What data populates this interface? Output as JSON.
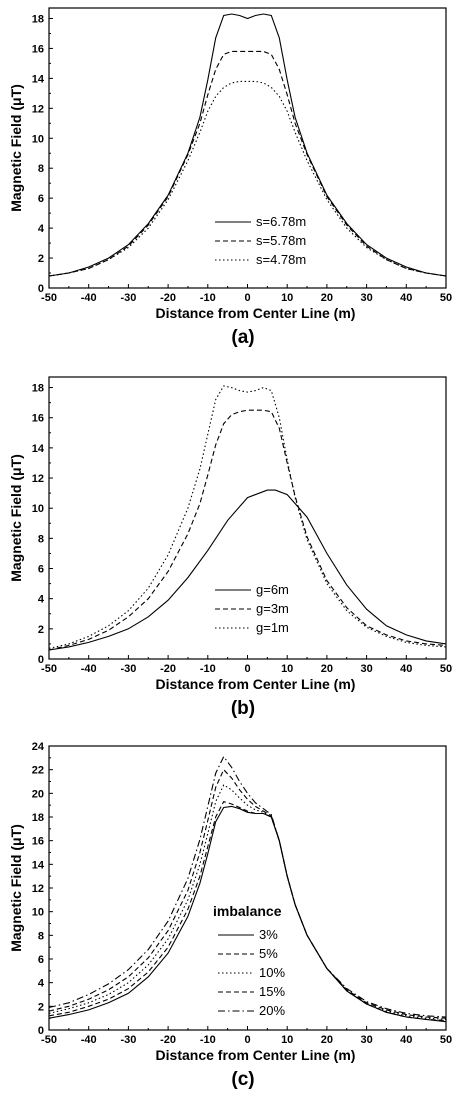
{
  "chart_data": [
    {
      "type": "line",
      "caption": "(a)",
      "xlabel": "Distance from Center Line (m)",
      "ylabel": "Magnetic Field (μT)",
      "xlim": [
        -50,
        50
      ],
      "ylim": [
        0,
        18.7
      ],
      "xticks": [
        -50,
        -40,
        -30,
        -20,
        -10,
        0,
        10,
        20,
        30,
        40,
        50
      ],
      "yticks": [
        0,
        2,
        4,
        6,
        8,
        10,
        12,
        14,
        16,
        18
      ],
      "legend": {
        "position": "lower-center"
      },
      "series": [
        {
          "name": "s=6.78m",
          "dash": "solid",
          "x": [
            -50,
            -45,
            -40,
            -35,
            -30,
            -25,
            -20,
            -15,
            -12,
            -10,
            -8,
            -6,
            -4,
            -2,
            0,
            2,
            4,
            6,
            8,
            10,
            12,
            15,
            20,
            25,
            30,
            35,
            40,
            45,
            50
          ],
          "y": [
            0.8,
            1.0,
            1.4,
            2.0,
            2.9,
            4.3,
            6.2,
            9.0,
            11.4,
            13.9,
            16.7,
            18.2,
            18.3,
            18.2,
            18.0,
            18.2,
            18.3,
            18.2,
            16.7,
            13.9,
            11.4,
            9.0,
            6.2,
            4.3,
            2.9,
            2.0,
            1.4,
            1.0,
            0.8
          ]
        },
        {
          "name": "s=5.78m",
          "dash": "dashed",
          "x": [
            -50,
            -45,
            -40,
            -35,
            -30,
            -25,
            -20,
            -15,
            -12,
            -10,
            -8,
            -6,
            -4,
            -2,
            0,
            2,
            4,
            6,
            8,
            10,
            12,
            15,
            20,
            25,
            30,
            35,
            40,
            45,
            50
          ],
          "y": [
            0.8,
            1.0,
            1.3,
            1.9,
            2.8,
            4.2,
            6.1,
            8.9,
            11.0,
            12.9,
            14.6,
            15.6,
            15.8,
            15.8,
            15.8,
            15.8,
            15.8,
            15.6,
            14.6,
            12.9,
            11.0,
            8.9,
            6.1,
            4.2,
            2.8,
            1.9,
            1.3,
            1.0,
            0.8
          ]
        },
        {
          "name": "s=4.78m",
          "dash": "dotted",
          "x": [
            -50,
            -45,
            -40,
            -35,
            -30,
            -25,
            -20,
            -15,
            -12,
            -10,
            -8,
            -6,
            -4,
            -2,
            0,
            2,
            4,
            6,
            8,
            10,
            12,
            15,
            20,
            25,
            30,
            35,
            40,
            45,
            50
          ],
          "y": [
            0.8,
            1.0,
            1.3,
            1.9,
            2.7,
            4.0,
            5.9,
            8.5,
            10.4,
            11.8,
            12.8,
            13.4,
            13.7,
            13.8,
            13.8,
            13.8,
            13.7,
            13.4,
            12.8,
            11.8,
            10.4,
            8.5,
            5.9,
            4.0,
            2.7,
            1.9,
            1.3,
            1.0,
            0.8
          ]
        }
      ]
    },
    {
      "type": "line",
      "caption": "(b)",
      "xlabel": "Distance from Center Line (m)",
      "ylabel": "Magnetic Field (μT)",
      "xlim": [
        -50,
        50
      ],
      "ylim": [
        0,
        18.7
      ],
      "xticks": [
        -50,
        -40,
        -30,
        -20,
        -10,
        0,
        10,
        20,
        30,
        40,
        50
      ],
      "yticks": [
        0,
        2,
        4,
        6,
        8,
        10,
        12,
        14,
        16,
        18
      ],
      "legend": {
        "position": "lower-center"
      },
      "series": [
        {
          "name": "g=6m",
          "dash": "solid",
          "x": [
            -50,
            -45,
            -40,
            -35,
            -30,
            -25,
            -20,
            -15,
            -10,
            -5,
            0,
            5,
            7,
            10,
            15,
            20,
            25,
            30,
            35,
            40,
            45,
            50
          ],
          "y": [
            0.6,
            0.8,
            1.1,
            1.5,
            2.0,
            2.8,
            3.9,
            5.4,
            7.2,
            9.2,
            10.7,
            11.2,
            11.2,
            10.9,
            9.4,
            7.0,
            4.9,
            3.3,
            2.2,
            1.6,
            1.2,
            1.0
          ]
        },
        {
          "name": "g=3m",
          "dash": "dashed",
          "x": [
            -50,
            -45,
            -40,
            -35,
            -30,
            -25,
            -20,
            -15,
            -12,
            -10,
            -8,
            -6,
            -4,
            -2,
            0,
            2,
            4,
            6,
            8,
            10,
            12,
            15,
            20,
            25,
            30,
            35,
            40,
            45,
            50
          ],
          "y": [
            0.6,
            0.9,
            1.3,
            1.9,
            2.8,
            4.0,
            5.8,
            8.3,
            10.3,
            12.2,
            14.2,
            15.6,
            16.2,
            16.4,
            16.5,
            16.5,
            16.5,
            16.4,
            15.3,
            13.0,
            10.8,
            8.1,
            5.2,
            3.4,
            2.2,
            1.6,
            1.2,
            1.0,
            0.9
          ]
        },
        {
          "name": "g=1m",
          "dash": "dotted",
          "x": [
            -50,
            -45,
            -40,
            -35,
            -30,
            -25,
            -20,
            -15,
            -12,
            -10,
            -8,
            -6,
            -4,
            -2,
            0,
            2,
            4,
            6,
            8,
            10,
            12,
            15,
            20,
            25,
            30,
            35,
            40,
            45,
            50
          ],
          "y": [
            0.7,
            1.0,
            1.5,
            2.2,
            3.2,
            4.7,
            6.9,
            10.0,
            12.6,
            14.9,
            17.2,
            18.1,
            18.0,
            17.8,
            17.7,
            17.8,
            18.0,
            17.8,
            16.0,
            13.2,
            10.7,
            7.9,
            5.0,
            3.2,
            2.1,
            1.5,
            1.1,
            0.9,
            0.8
          ]
        }
      ]
    },
    {
      "type": "line",
      "caption": "(c)",
      "xlabel": "Distance from Center Line (m)",
      "ylabel": "Magnetic Field (μT)",
      "xlim": [
        -50,
        50
      ],
      "ylim": [
        0,
        24
      ],
      "xticks": [
        -50,
        -40,
        -30,
        -20,
        -10,
        0,
        10,
        20,
        30,
        40,
        50
      ],
      "yticks": [
        0,
        2,
        4,
        6,
        8,
        10,
        12,
        14,
        16,
        18,
        20,
        22,
        24
      ],
      "legend": {
        "title": "imbalance",
        "position": "lower-center"
      },
      "series": [
        {
          "name": "3%",
          "dash": "solid",
          "x": [
            -50,
            -45,
            -40,
            -35,
            -30,
            -25,
            -20,
            -15,
            -12,
            -10,
            -8,
            -6,
            -4,
            -2,
            0,
            2,
            4,
            6,
            8,
            10,
            12,
            15,
            20,
            25,
            30,
            35,
            40,
            45,
            50
          ],
          "y": [
            1.0,
            1.3,
            1.7,
            2.3,
            3.1,
            4.5,
            6.5,
            9.6,
            12.4,
            14.9,
            17.6,
            18.8,
            18.9,
            18.7,
            18.4,
            18.3,
            18.3,
            18.0,
            16.0,
            13.0,
            10.6,
            8.0,
            5.2,
            3.3,
            2.2,
            1.5,
            1.1,
            0.9,
            0.7
          ]
        },
        {
          "name": "5%",
          "dash": "dashed",
          "x": [
            -50,
            -45,
            -40,
            -35,
            -30,
            -25,
            -20,
            -15,
            -12,
            -10,
            -8,
            -6,
            -4,
            -2,
            0,
            2,
            4,
            6,
            8,
            10,
            12,
            15,
            20,
            25,
            30,
            35,
            40,
            45,
            50
          ],
          "y": [
            1.2,
            1.5,
            2.0,
            2.6,
            3.5,
            4.9,
            7.0,
            10.2,
            13.0,
            15.5,
            18.0,
            19.3,
            19.1,
            18.8,
            18.5,
            18.3,
            18.3,
            18.0,
            16.0,
            13.0,
            10.6,
            8.0,
            5.2,
            3.3,
            2.2,
            1.5,
            1.1,
            0.9,
            0.8
          ]
        },
        {
          "name": "10%",
          "dash": "dotted",
          "x": [
            -50,
            -45,
            -40,
            -35,
            -30,
            -25,
            -20,
            -15,
            -12,
            -10,
            -8,
            -6,
            -4,
            -2,
            0,
            2,
            4,
            6,
            8,
            10,
            12,
            15,
            20,
            25,
            30,
            35,
            40,
            45,
            50
          ],
          "y": [
            1.4,
            1.8,
            2.3,
            3.0,
            4.0,
            5.5,
            7.7,
            11.0,
            14.0,
            16.6,
            19.3,
            20.7,
            20.3,
            19.6,
            19.0,
            18.6,
            18.4,
            18.0,
            16.0,
            13.0,
            10.6,
            8.0,
            5.2,
            3.3,
            2.2,
            1.6,
            1.2,
            1.0,
            0.9
          ]
        },
        {
          "name": "15%",
          "dash": "dashed",
          "x": [
            -50,
            -45,
            -40,
            -35,
            -30,
            -25,
            -20,
            -15,
            -12,
            -10,
            -8,
            -6,
            -4,
            -2,
            0,
            2,
            4,
            6,
            8,
            10,
            12,
            15,
            20,
            25,
            30,
            35,
            40,
            45,
            50
          ],
          "y": [
            1.6,
            2.0,
            2.6,
            3.4,
            4.5,
            6.1,
            8.4,
            11.8,
            15.0,
            17.7,
            20.5,
            22.0,
            21.3,
            20.3,
            19.5,
            18.9,
            18.5,
            18.1,
            16.0,
            13.0,
            10.6,
            8.0,
            5.2,
            3.4,
            2.3,
            1.7,
            1.3,
            1.1,
            1.0
          ]
        },
        {
          "name": "20%",
          "dash": "dashdot",
          "x": [
            -50,
            -45,
            -40,
            -35,
            -30,
            -25,
            -20,
            -15,
            -12,
            -10,
            -8,
            -6,
            -4,
            -2,
            0,
            2,
            4,
            6,
            8,
            10,
            12,
            15,
            20,
            25,
            30,
            35,
            40,
            45,
            50
          ],
          "y": [
            1.9,
            2.3,
            3.0,
            3.9,
            5.1,
            6.8,
            9.2,
            12.8,
            16.1,
            18.9,
            21.7,
            23.1,
            22.2,
            21.0,
            20.0,
            19.2,
            18.7,
            18.2,
            16.0,
            13.0,
            10.6,
            8.0,
            5.2,
            3.5,
            2.4,
            1.8,
            1.4,
            1.2,
            1.1
          ]
        }
      ]
    }
  ]
}
